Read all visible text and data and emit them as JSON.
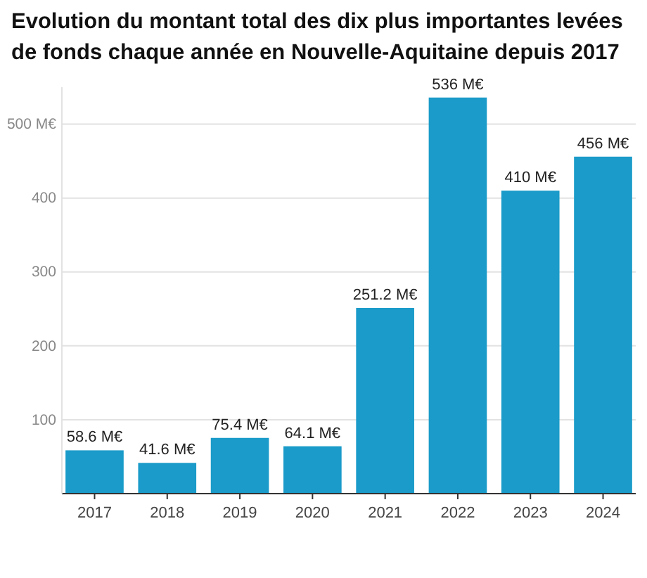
{
  "chart_data": {
    "type": "bar",
    "title": "Evolution du montant total des dix plus importantes levées de fonds chaque année en Nouvelle-Aquitaine depuis 2017",
    "categories": [
      "2017",
      "2018",
      "2019",
      "2020",
      "2021",
      "2022",
      "2023",
      "2024"
    ],
    "values": [
      58.6,
      41.6,
      75.4,
      64.1,
      251.2,
      536,
      410,
      456
    ],
    "value_labels": [
      "58.6 M€",
      "41.6 M€",
      "75.4 M€",
      "64.1 M€",
      "251.2 M€",
      "536 M€",
      "410 M€",
      "456 M€"
    ],
    "color": "#1a9bc9",
    "ylim": [
      0,
      550
    ],
    "yticks": [
      100,
      200,
      300,
      400,
      {
        "value": 500,
        "label": "500 M€"
      }
    ],
    "grid": "y"
  }
}
